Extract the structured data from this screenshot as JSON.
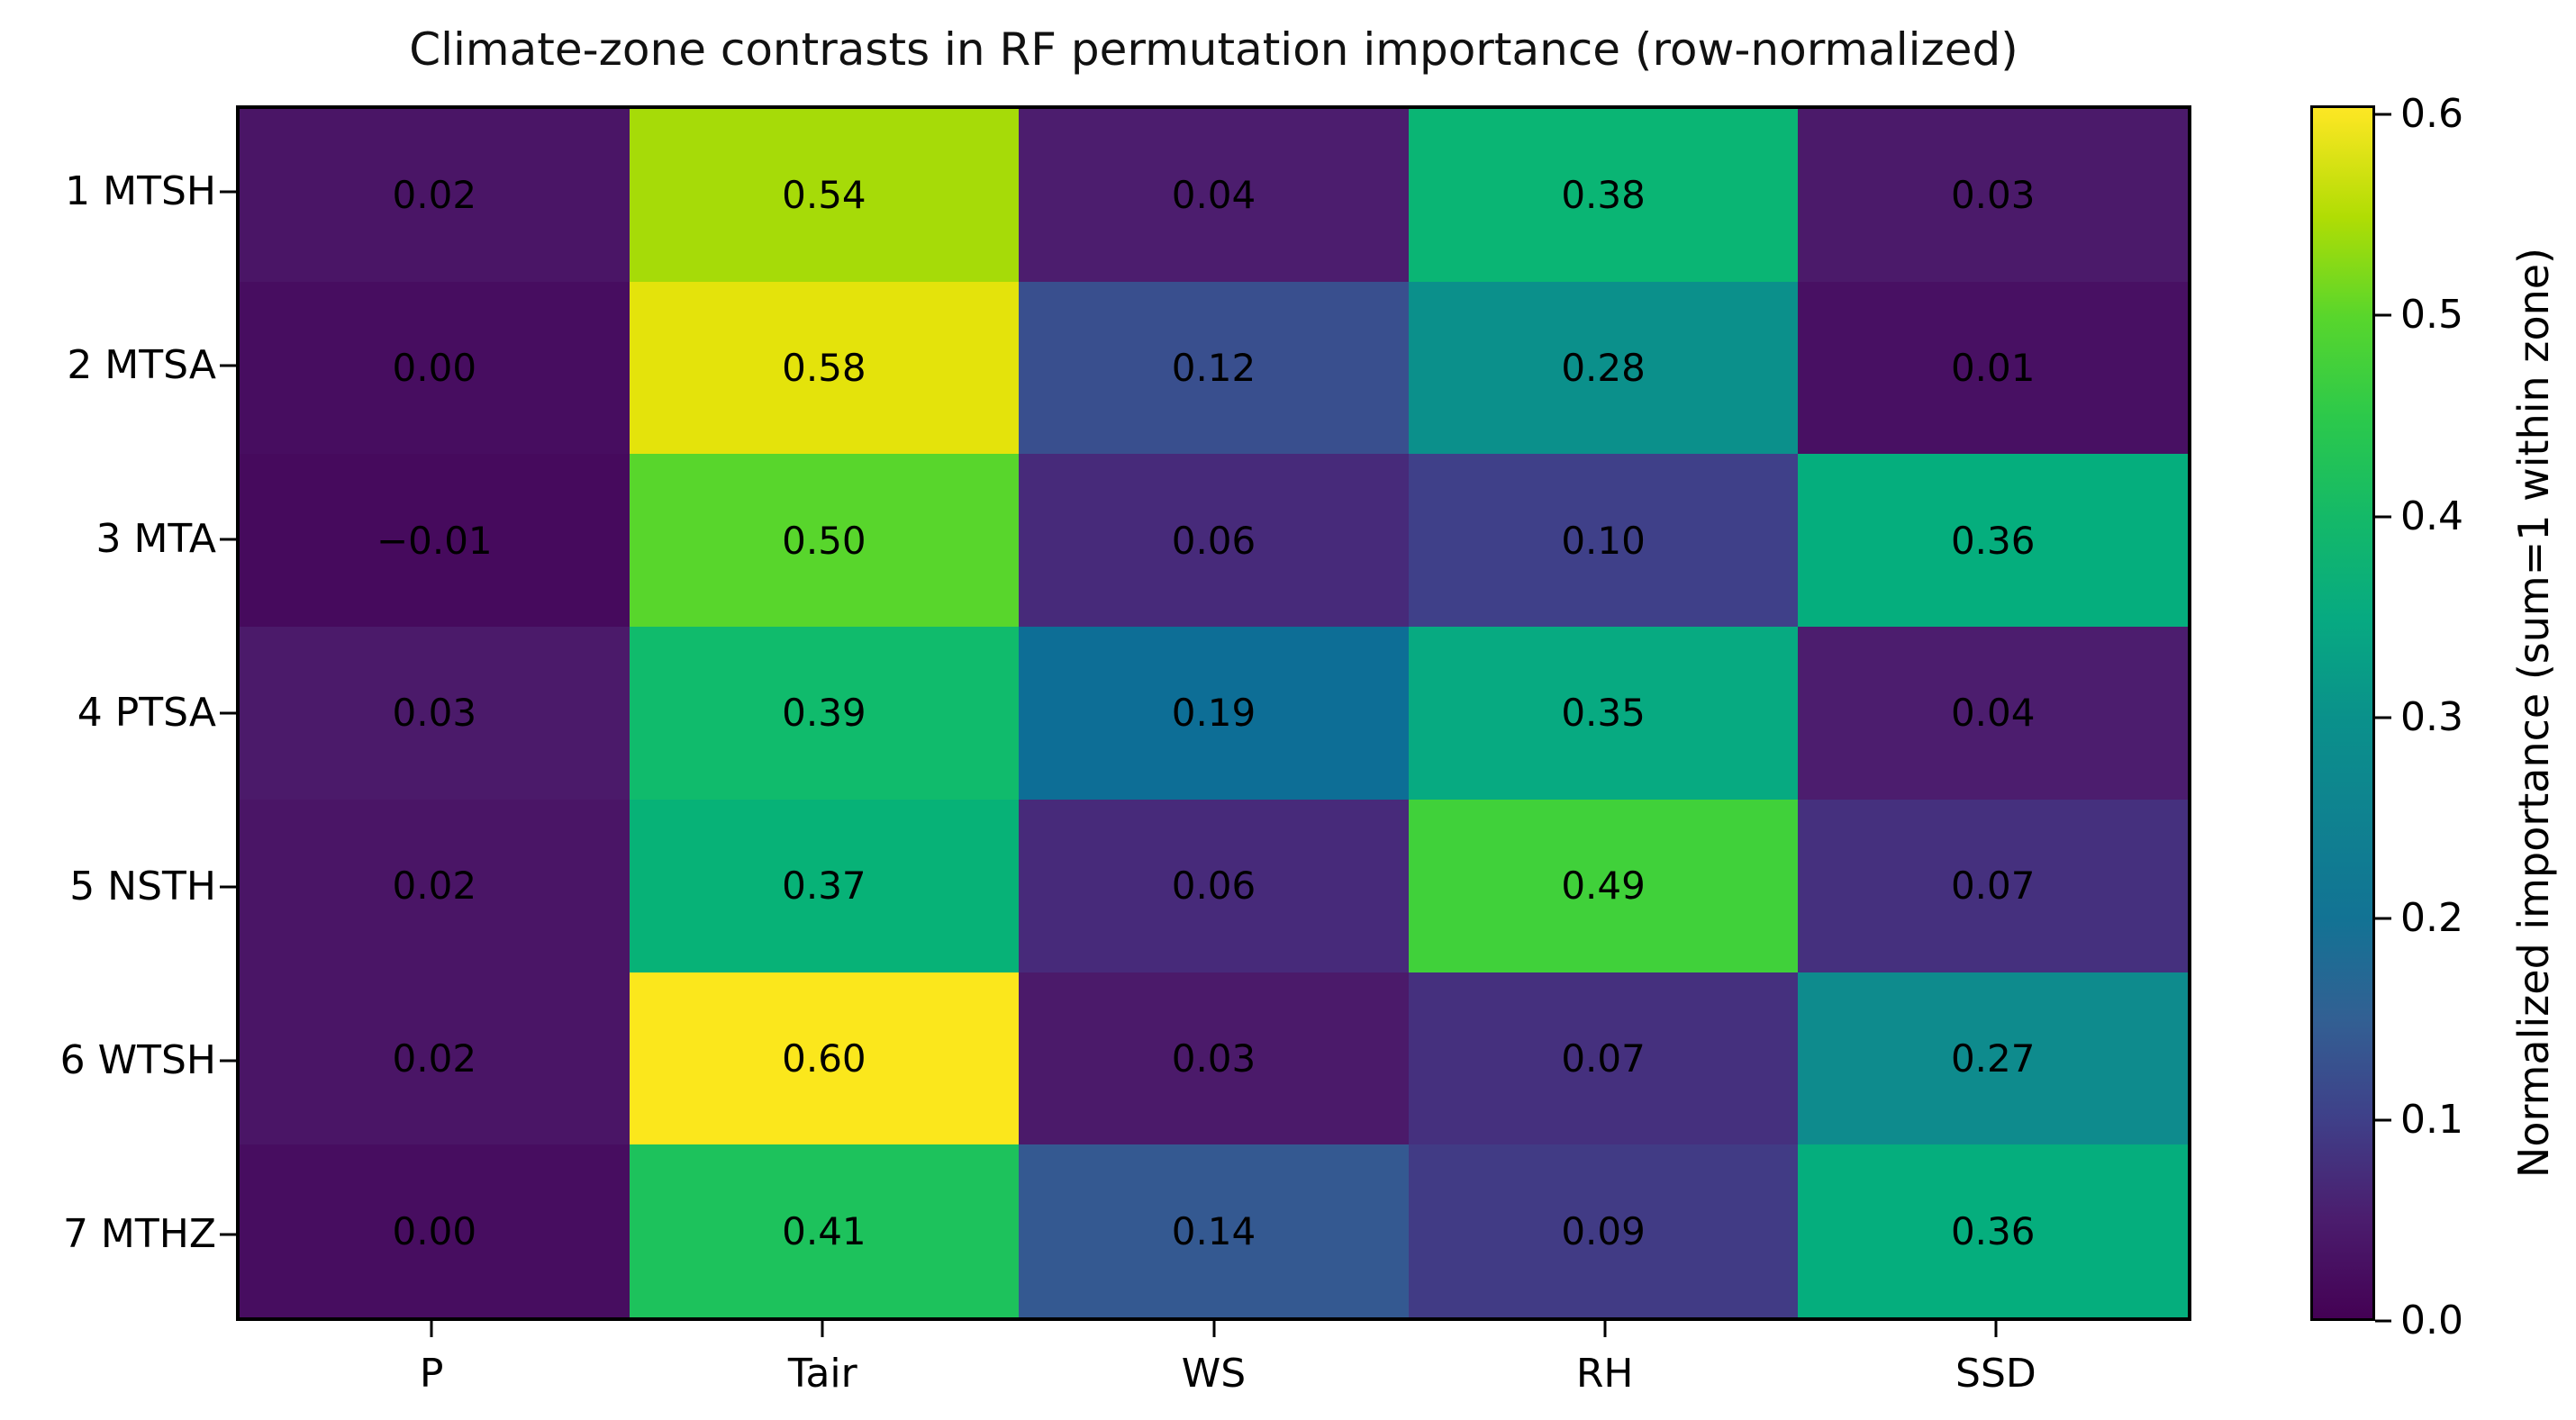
{
  "figure": {
    "background": "#ffffff"
  },
  "chart_data": {
    "type": "heatmap",
    "title": "Climate-zone contrasts in RF permutation importance (row-normalized)",
    "rows": [
      "1 MTSH",
      "2 MTSA",
      "3 MTA",
      "4 PTSA",
      "5 NSTH",
      "6 WTSH",
      "7 MTHZ"
    ],
    "columns": [
      "P",
      "Tair",
      "WS",
      "RH",
      "SSD"
    ],
    "values": [
      [
        0.02,
        0.54,
        0.04,
        0.38,
        0.03
      ],
      [
        0.0,
        0.58,
        0.12,
        0.28,
        0.01
      ],
      [
        -0.01,
        0.5,
        0.06,
        0.1,
        0.36
      ],
      [
        0.03,
        0.39,
        0.19,
        0.35,
        0.04
      ],
      [
        0.02,
        0.37,
        0.06,
        0.49,
        0.07
      ],
      [
        0.02,
        0.6,
        0.03,
        0.07,
        0.27
      ],
      [
        0.0,
        0.41,
        0.14,
        0.09,
        0.36
      ]
    ],
    "cell_labels": [
      [
        "0.02",
        "0.54",
        "0.04",
        "0.38",
        "0.03"
      ],
      [
        "0.00",
        "0.58",
        "0.12",
        "0.28",
        "0.01"
      ],
      [
        "−0.01",
        "0.50",
        "0.06",
        "0.10",
        "0.36"
      ],
      [
        "0.03",
        "0.39",
        "0.19",
        "0.35",
        "0.04"
      ],
      [
        "0.02",
        "0.37",
        "0.06",
        "0.49",
        "0.07"
      ],
      [
        "0.02",
        "0.60",
        "0.03",
        "0.07",
        "0.27"
      ],
      [
        "0.00",
        "0.41",
        "0.14",
        "0.09",
        "0.36"
      ]
    ],
    "cell_colors": [
      [
        "#4a1566",
        "#a6db08",
        "#4c1d6e",
        "#0ab574",
        "#4b1a6a"
      ],
      [
        "#470d60",
        "#e4e30b",
        "#394f8e",
        "#0b908b",
        "#481063"
      ],
      [
        "#460a5d",
        "#58d62c",
        "#472a7a",
        "#3f4089",
        "#05ae7d"
      ],
      [
        "#4b1a6a",
        "#10bb6c",
        "#0d6e96",
        "#07aa81",
        "#4c1d6e"
      ],
      [
        "#4a1566",
        "#07b277",
        "#472a7a",
        "#40d13a",
        "#45307e"
      ],
      [
        "#4a1566",
        "#fbe71c",
        "#4b1a6a",
        "#45307e",
        "#0e8b8d"
      ],
      [
        "#470d60",
        "#1dc25c",
        "#345991",
        "#413b85",
        "#05ae7d"
      ]
    ],
    "annotation_color": "#000000",
    "grid": false,
    "colormap": "viridis",
    "value_range": [
      0.0,
      0.6
    ],
    "colorbar": {
      "label": "Normalized importance (sum=1 within zone)",
      "ticks": [
        "0.0",
        "0.1",
        "0.2",
        "0.3",
        "0.4",
        "0.5",
        "0.6"
      ],
      "tick_values": [
        0.0,
        0.1,
        0.2,
        0.3,
        0.4,
        0.5,
        0.6
      ],
      "vmin": 0.0,
      "vmax": 0.6045,
      "gradient_stops": [
        {
          "v": 0.0,
          "color": "#440154"
        },
        {
          "v": 0.05,
          "color": "#4b1d6e"
        },
        {
          "v": 0.1,
          "color": "#3f4089"
        },
        {
          "v": 0.15,
          "color": "#326093"
        },
        {
          "v": 0.2,
          "color": "#127394"
        },
        {
          "v": 0.25,
          "color": "#0f8290"
        },
        {
          "v": 0.3,
          "color": "#0a918b"
        },
        {
          "v": 0.35,
          "color": "#07aa81"
        },
        {
          "v": 0.4,
          "color": "#14b968"
        },
        {
          "v": 0.45,
          "color": "#2cc94b"
        },
        {
          "v": 0.5,
          "color": "#58d62c"
        },
        {
          "v": 0.55,
          "color": "#b0dd04"
        },
        {
          "v": 0.6,
          "color": "#f8e621"
        },
        {
          "v": 0.6045,
          "color": "#fce724"
        }
      ]
    }
  }
}
